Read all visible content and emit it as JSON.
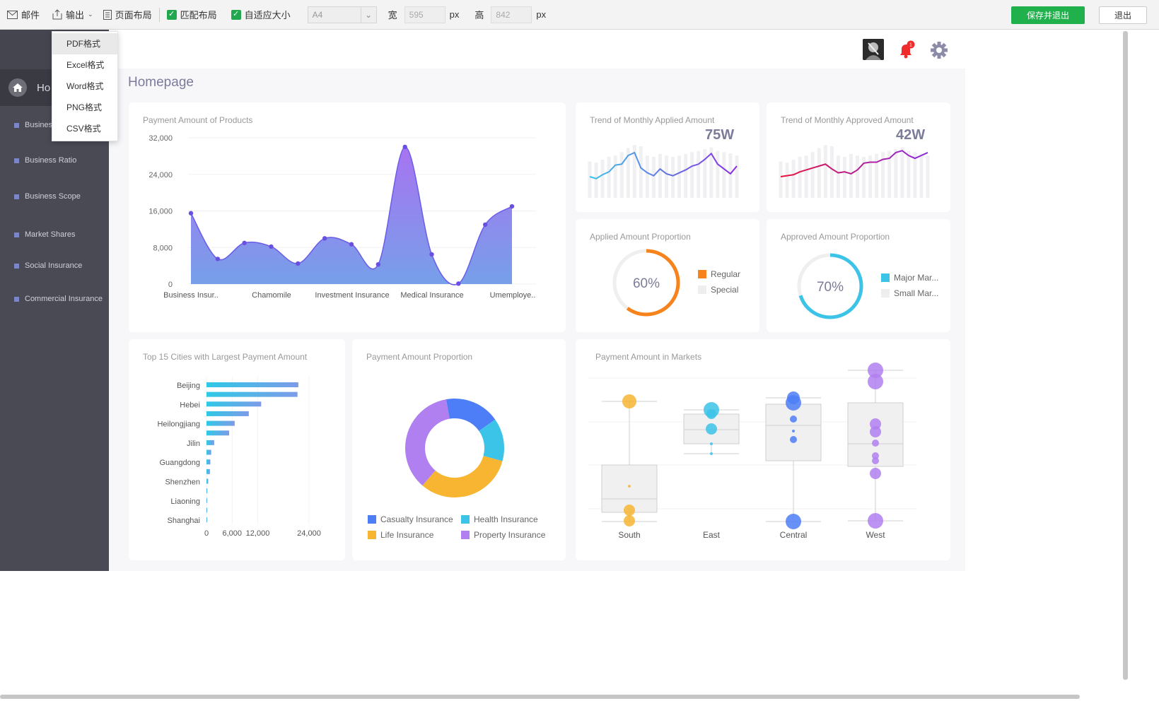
{
  "toolbar": {
    "mail": "邮件",
    "export": "输出",
    "page_layout": "页面布局",
    "match_layout": "匹配布局",
    "auto_size": "自适应大小",
    "paper": "A4",
    "width_label": "宽",
    "width_value": "595",
    "unit1": "px",
    "height_label": "高",
    "height_value": "842",
    "unit2": "px",
    "save_exit": "保存并退出",
    "exit": "退出"
  },
  "export_menu": [
    "PDF格式",
    "Excel格式",
    "Word格式",
    "PNG格式",
    "CSV格式"
  ],
  "sidebar": {
    "home_label": "Ho",
    "items": [
      "Busines",
      "Business Ratio",
      "Business Scope",
      "Market Shares",
      "Social Insurance",
      "Commercial Insurance"
    ]
  },
  "header": {
    "notification_count": "1",
    "page_title": "Homepage"
  },
  "colors": {
    "accent": "#7b7b9a",
    "sidebar": "#4a4a55",
    "save": "#21b14c"
  },
  "cards": {
    "payment_products": {
      "title": "Payment Amount of Products"
    },
    "trend_applied": {
      "title": "Trend of Monthly Applied Amount",
      "value": "75W"
    },
    "trend_approved": {
      "title": "Trend of Monthly Approved Amount",
      "value": "42W"
    },
    "applied_prop": {
      "title": "Applied Amount Proportion",
      "value": "60%",
      "legend": [
        "Regular",
        "Special"
      ]
    },
    "approved_prop": {
      "title": "Approved Amount Proportion",
      "value": "70%",
      "legend": [
        "Major Mar...",
        "Small Mar..."
      ]
    },
    "top_cities": {
      "title": "Top 15 Cities with Largest Payment Amount"
    },
    "payment_prop": {
      "title": "Payment Amount Proportion",
      "legend": [
        "Casualty Insurance",
        "Health Insurance",
        "Life Insurance",
        "Property Insurance"
      ]
    },
    "markets": {
      "title": "Payment Amount in Markets"
    }
  },
  "chart_data": [
    {
      "type": "area",
      "title": "Payment Amount of Products",
      "yticks": [
        "32,000",
        "24,000",
        "16,000",
        "8,000",
        "0"
      ],
      "ylim": [
        0,
        32000
      ],
      "xlabels": [
        "Business Insur..",
        "Chamomile",
        "Investment Insurance",
        "Medical Insurance",
        "Umemploye.."
      ],
      "values": [
        15500,
        5500,
        9000,
        8200,
        4500,
        10000,
        8700,
        4300,
        30000,
        6500,
        100,
        13000,
        17000
      ]
    },
    {
      "type": "line",
      "title": "Trend of Monthly Applied Amount",
      "values": [
        22,
        20,
        24,
        27,
        34,
        35,
        44,
        47,
        31,
        26,
        23,
        30,
        25,
        23,
        26,
        29,
        33,
        35,
        40,
        46,
        35,
        30,
        25,
        33
      ]
    },
    {
      "type": "line",
      "title": "Trend of Monthly Approved Amount",
      "values": [
        22,
        23,
        24,
        27,
        29,
        31,
        33,
        35,
        30,
        26,
        27,
        25,
        29,
        36,
        37,
        37,
        40,
        41,
        47,
        49,
        44,
        41,
        44,
        47
      ]
    },
    {
      "type": "pie",
      "title": "Applied Amount Proportion",
      "categories": [
        "Regular",
        "Special"
      ],
      "values": [
        60,
        40
      ]
    },
    {
      "type": "pie",
      "title": "Approved Amount Proportion",
      "categories": [
        "Major Mar...",
        "Small Mar..."
      ],
      "values": [
        70,
        30
      ]
    },
    {
      "type": "bar",
      "title": "Top 15 Cities with Largest Payment Amount",
      "categories": [
        "Beijing",
        "",
        "Hebei",
        "",
        "Heilongjiang",
        "",
        "Jilin",
        "",
        "Guangdong",
        "",
        "Shenzhen",
        "",
        "Liaoning",
        "",
        "Shanghai"
      ],
      "values": [
        21500,
        21300,
        12800,
        9900,
        6600,
        5300,
        1800,
        1100,
        900,
        800,
        400,
        200,
        150,
        100,
        80
      ],
      "xticks": [
        "0",
        "6,000",
        "12,000",
        "24,000"
      ],
      "xlim": [
        0,
        24000
      ]
    },
    {
      "type": "pie",
      "title": "Payment Amount Proportion",
      "categories": [
        "Casualty Insurance",
        "Health Insurance",
        "Life Insurance",
        "Property Insurance"
      ],
      "values": [
        18,
        14,
        32,
        36
      ],
      "colors": [
        "#4d7ef7",
        "#3cc3e8",
        "#f7b531",
        "#b07ff0"
      ]
    },
    {
      "type": "scatter",
      "title": "Payment Amount in Markets",
      "categories": [
        "South",
        "East",
        "Central",
        "West"
      ]
    }
  ]
}
